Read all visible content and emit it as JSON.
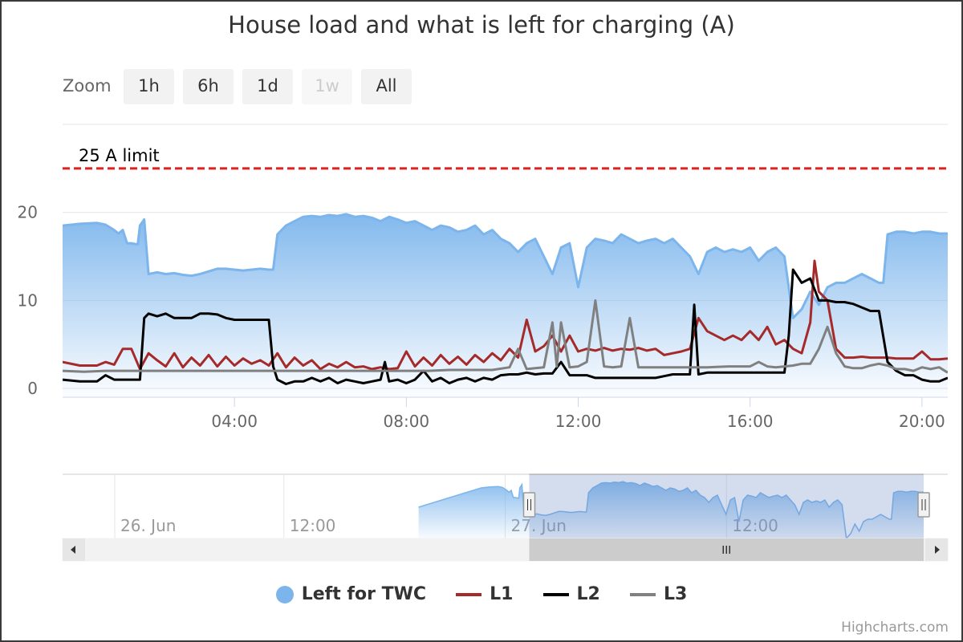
{
  "chart_data": {
    "type": "area",
    "title": "House load and what is left for charging (A)",
    "zoom": {
      "label": "Zoom",
      "buttons": [
        {
          "label": "1h",
          "enabled": true
        },
        {
          "label": "6h",
          "enabled": true
        },
        {
          "label": "1d",
          "enabled": true
        },
        {
          "label": "1w",
          "enabled": false
        },
        {
          "label": "All",
          "enabled": true
        }
      ]
    },
    "xaxis": {
      "unit": "hours",
      "range": [
        0,
        20.6
      ],
      "tick_values": [
        4,
        8,
        12,
        16,
        20
      ],
      "tick_labels": [
        "04:00",
        "08:00",
        "12:00",
        "16:00",
        "20:00"
      ]
    },
    "yaxis": {
      "range": [
        -1,
        30
      ],
      "tick_values": [
        0,
        10,
        20
      ],
      "tick_labels": [
        "0",
        "10",
        "20"
      ],
      "grid": true
    },
    "plot_line": {
      "value": 25,
      "label": "25 A limit",
      "color": "#dd2222",
      "style": "dashed"
    },
    "series": [
      {
        "name": "Left for TWC",
        "kind": "area",
        "color": "#7cb5ec",
        "x": [
          0,
          0.4,
          0.8,
          1.0,
          1.2,
          1.3,
          1.4,
          1.5,
          1.6,
          1.7,
          1.75,
          1.8,
          1.9,
          2.0,
          2.2,
          2.4,
          2.6,
          2.8,
          3.0,
          3.2,
          3.4,
          3.6,
          3.8,
          4.0,
          4.2,
          4.4,
          4.6,
          4.8,
          4.9,
          5.0,
          5.2,
          5.4,
          5.6,
          5.8,
          6.0,
          6.2,
          6.4,
          6.6,
          6.8,
          7.0,
          7.2,
          7.4,
          7.6,
          7.8,
          8.0,
          8.2,
          8.4,
          8.6,
          8.8,
          9.0,
          9.2,
          9.4,
          9.6,
          9.8,
          10.0,
          10.2,
          10.4,
          10.6,
          10.8,
          11.0,
          11.2,
          11.4,
          11.6,
          11.8,
          12.0,
          12.2,
          12.4,
          12.6,
          12.8,
          13.0,
          13.2,
          13.4,
          13.6,
          13.8,
          14.0,
          14.2,
          14.4,
          14.6,
          14.8,
          15.0,
          15.2,
          15.4,
          15.6,
          15.8,
          16.0,
          16.2,
          16.4,
          16.6,
          16.8,
          17.0,
          17.2,
          17.4,
          17.6,
          17.8,
          18.0,
          18.2,
          18.4,
          18.6,
          18.8,
          19.0,
          19.1,
          19.2,
          19.4,
          19.6,
          19.8,
          20.0,
          20.2,
          20.4,
          20.6
        ],
        "values": [
          18.5,
          18.7,
          18.8,
          18.6,
          18.0,
          17.6,
          18.0,
          16.5,
          16.5,
          16.4,
          16.4,
          18.5,
          19.2,
          13.0,
          13.2,
          13.0,
          13.1,
          12.9,
          12.8,
          13.0,
          13.3,
          13.6,
          13.6,
          13.5,
          13.4,
          13.5,
          13.6,
          13.5,
          13.5,
          17.5,
          18.5,
          19.0,
          19.5,
          19.6,
          19.5,
          19.7,
          19.6,
          19.8,
          19.5,
          19.6,
          19.4,
          19.0,
          19.5,
          19.2,
          18.8,
          19.0,
          18.5,
          18.0,
          18.5,
          18.3,
          17.8,
          18.0,
          18.5,
          17.5,
          18.0,
          17.0,
          16.5,
          15.5,
          16.5,
          17.0,
          15.0,
          13.0,
          16.0,
          16.5,
          11.5,
          16.0,
          17.0,
          16.8,
          16.5,
          17.5,
          17.0,
          16.5,
          16.8,
          17.0,
          16.5,
          17.0,
          16.0,
          15.0,
          13.0,
          15.5,
          16.0,
          15.5,
          15.8,
          15.5,
          16.0,
          14.5,
          15.5,
          16.0,
          15.0,
          8.0,
          9.0,
          11.0,
          9.5,
          11.5,
          12.0,
          12.0,
          12.5,
          13.0,
          12.5,
          12.0,
          12.0,
          17.5,
          17.8,
          17.8,
          17.6,
          17.8,
          17.8,
          17.6,
          17.6
        ]
      },
      {
        "name": "L1",
        "kind": "line",
        "color": "#a52a2a",
        "x": [
          0,
          0.4,
          0.8,
          1.0,
          1.2,
          1.4,
          1.6,
          1.8,
          2.0,
          2.2,
          2.4,
          2.6,
          2.8,
          3.0,
          3.2,
          3.4,
          3.6,
          3.8,
          4.0,
          4.2,
          4.4,
          4.6,
          4.8,
          5.0,
          5.2,
          5.4,
          5.6,
          5.8,
          6.0,
          6.2,
          6.4,
          6.6,
          6.8,
          7.0,
          7.2,
          7.4,
          7.6,
          7.8,
          8.0,
          8.2,
          8.4,
          8.6,
          8.8,
          9.0,
          9.2,
          9.4,
          9.6,
          9.8,
          10.0,
          10.2,
          10.4,
          10.6,
          10.8,
          11.0,
          11.2,
          11.4,
          11.6,
          11.8,
          12.0,
          12.2,
          12.4,
          12.6,
          12.8,
          13.0,
          13.2,
          13.4,
          13.6,
          13.8,
          14.0,
          14.2,
          14.4,
          14.6,
          14.8,
          15.0,
          15.2,
          15.4,
          15.6,
          15.8,
          16.0,
          16.2,
          16.4,
          16.6,
          16.8,
          17.0,
          17.2,
          17.4,
          17.5,
          17.6,
          17.8,
          18.0,
          18.2,
          18.4,
          18.6,
          18.8,
          19.0,
          19.2,
          19.4,
          19.6,
          19.8,
          20.0,
          20.2,
          20.4,
          20.6
        ],
        "values": [
          3.0,
          2.6,
          2.6,
          3.0,
          2.7,
          4.5,
          4.5,
          2.2,
          4.0,
          3.2,
          2.5,
          4.0,
          2.4,
          3.5,
          2.6,
          3.8,
          2.5,
          3.6,
          2.6,
          3.4,
          2.8,
          3.2,
          2.6,
          4.0,
          2.4,
          3.5,
          2.6,
          3.2,
          2.2,
          2.8,
          2.4,
          3.0,
          2.4,
          2.5,
          2.2,
          2.4,
          2.2,
          2.3,
          4.2,
          2.5,
          3.5,
          2.6,
          3.8,
          2.8,
          3.6,
          2.7,
          3.8,
          3.0,
          4.0,
          3.2,
          4.5,
          3.5,
          7.8,
          4.2,
          4.8,
          6.0,
          4.2,
          6.0,
          4.2,
          4.5,
          4.3,
          4.6,
          4.3,
          4.5,
          4.4,
          4.6,
          4.3,
          4.5,
          3.8,
          4.0,
          4.2,
          4.5,
          8.0,
          6.5,
          6.0,
          5.5,
          6.0,
          5.5,
          6.5,
          5.5,
          7.0,
          5.0,
          5.5,
          4.5,
          4.0,
          7.5,
          14.5,
          11.0,
          10.0,
          4.5,
          3.5,
          3.5,
          3.6,
          3.5,
          3.5,
          3.5,
          3.4,
          3.4,
          3.4,
          4.2,
          3.3,
          3.3,
          3.4
        ]
      },
      {
        "name": "L2",
        "kind": "line",
        "color": "#000000",
        "x": [
          0,
          0.4,
          0.8,
          1.0,
          1.2,
          1.4,
          1.6,
          1.8,
          1.9,
          2.0,
          2.2,
          2.4,
          2.6,
          2.8,
          3.0,
          3.2,
          3.4,
          3.6,
          3.8,
          4.0,
          4.2,
          4.4,
          4.6,
          4.8,
          4.9,
          5.0,
          5.2,
          5.4,
          5.6,
          5.8,
          6.0,
          6.2,
          6.4,
          6.6,
          6.8,
          7.0,
          7.2,
          7.4,
          7.5,
          7.6,
          7.8,
          8.0,
          8.2,
          8.4,
          8.6,
          8.8,
          9.0,
          9.2,
          9.4,
          9.6,
          9.8,
          10.0,
          10.2,
          10.4,
          10.6,
          10.8,
          11.0,
          11.2,
          11.4,
          11.6,
          11.8,
          12.0,
          12.2,
          12.4,
          12.6,
          12.8,
          13.0,
          13.2,
          13.4,
          13.6,
          13.8,
          14.0,
          14.2,
          14.4,
          14.6,
          14.7,
          14.8,
          15.0,
          15.2,
          15.4,
          15.6,
          15.8,
          16.0,
          16.2,
          16.4,
          16.6,
          16.8,
          16.9,
          17.0,
          17.2,
          17.4,
          17.6,
          17.8,
          18.0,
          18.2,
          18.4,
          18.6,
          18.8,
          19.0,
          19.2,
          19.4,
          19.6,
          19.8,
          20.0,
          20.2,
          20.4,
          20.6
        ],
        "values": [
          1.0,
          0.8,
          0.8,
          1.5,
          1.0,
          1.0,
          1.0,
          1.0,
          8.0,
          8.5,
          8.2,
          8.5,
          8.0,
          8.0,
          8.0,
          8.5,
          8.5,
          8.4,
          8.0,
          7.8,
          7.8,
          7.8,
          7.8,
          7.8,
          2.5,
          1.0,
          0.5,
          0.8,
          0.8,
          1.2,
          0.8,
          1.2,
          0.6,
          1.0,
          0.8,
          0.6,
          0.8,
          1.0,
          3.0,
          0.8,
          1.0,
          0.6,
          1.0,
          2.0,
          0.8,
          1.2,
          0.6,
          1.0,
          1.2,
          0.8,
          1.2,
          1.0,
          1.5,
          1.6,
          1.6,
          1.8,
          1.6,
          1.7,
          1.7,
          3.0,
          1.5,
          1.5,
          1.5,
          1.2,
          1.2,
          1.2,
          1.2,
          1.2,
          1.2,
          1.2,
          1.2,
          1.4,
          1.6,
          1.6,
          1.6,
          9.5,
          1.6,
          1.8,
          1.8,
          1.8,
          1.8,
          1.8,
          1.8,
          1.8,
          1.8,
          1.8,
          1.8,
          6.0,
          13.5,
          12.0,
          12.5,
          10.0,
          10.0,
          9.8,
          9.8,
          9.6,
          9.2,
          8.8,
          8.8,
          3.0,
          2.0,
          1.5,
          1.5,
          1.0,
          0.8,
          0.8,
          1.2
        ]
      },
      {
        "name": "L3",
        "kind": "line",
        "color": "#808080",
        "x": [
          0,
          0.5,
          1.0,
          1.5,
          2.0,
          2.5,
          3.0,
          3.5,
          4.0,
          4.5,
          5.0,
          5.5,
          6.0,
          6.5,
          7.0,
          7.5,
          8.0,
          8.5,
          9.0,
          9.5,
          10.0,
          10.4,
          10.6,
          10.8,
          11.0,
          11.2,
          11.4,
          11.5,
          11.6,
          11.8,
          12.0,
          12.2,
          12.4,
          12.6,
          12.8,
          13.0,
          13.2,
          13.4,
          13.6,
          14.0,
          14.5,
          15.0,
          15.5,
          16.0,
          16.2,
          16.4,
          16.6,
          16.8,
          17.0,
          17.2,
          17.4,
          17.6,
          17.8,
          18.0,
          18.2,
          18.4,
          18.6,
          18.8,
          19.0,
          19.2,
          19.4,
          19.6,
          19.8,
          20.0,
          20.2,
          20.4,
          20.6
        ],
        "values": [
          2.0,
          1.9,
          2.0,
          2.0,
          2.0,
          2.0,
          2.0,
          2.0,
          2.0,
          2.0,
          2.0,
          2.0,
          2.0,
          2.0,
          2.0,
          2.0,
          2.0,
          2.0,
          2.1,
          2.1,
          2.1,
          2.4,
          4.5,
          2.2,
          2.3,
          2.4,
          7.5,
          2.5,
          7.5,
          2.4,
          2.5,
          3.0,
          10.0,
          2.5,
          2.4,
          2.5,
          8.0,
          2.4,
          2.4,
          2.4,
          2.4,
          2.4,
          2.5,
          2.5,
          3.0,
          2.5,
          2.4,
          2.5,
          2.6,
          2.8,
          2.8,
          4.5,
          7.0,
          4.0,
          2.5,
          2.3,
          2.3,
          2.6,
          2.8,
          2.6,
          2.2,
          2.2,
          2.0,
          2.4,
          2.2,
          2.4,
          1.8
        ]
      }
    ],
    "navigator": {
      "labels": [
        "26. Jun",
        "12:00",
        "27. Jun",
        "12:00"
      ],
      "label_hours": [
        -48,
        -36,
        -24,
        -12
      ],
      "range_hours": [
        -48,
        0
      ],
      "selected_range_hours": [
        -24,
        20.6
      ],
      "data_start_hours": -30
    },
    "legend": {
      "placement": "bottom-center"
    },
    "credits": "Highcharts.com"
  }
}
